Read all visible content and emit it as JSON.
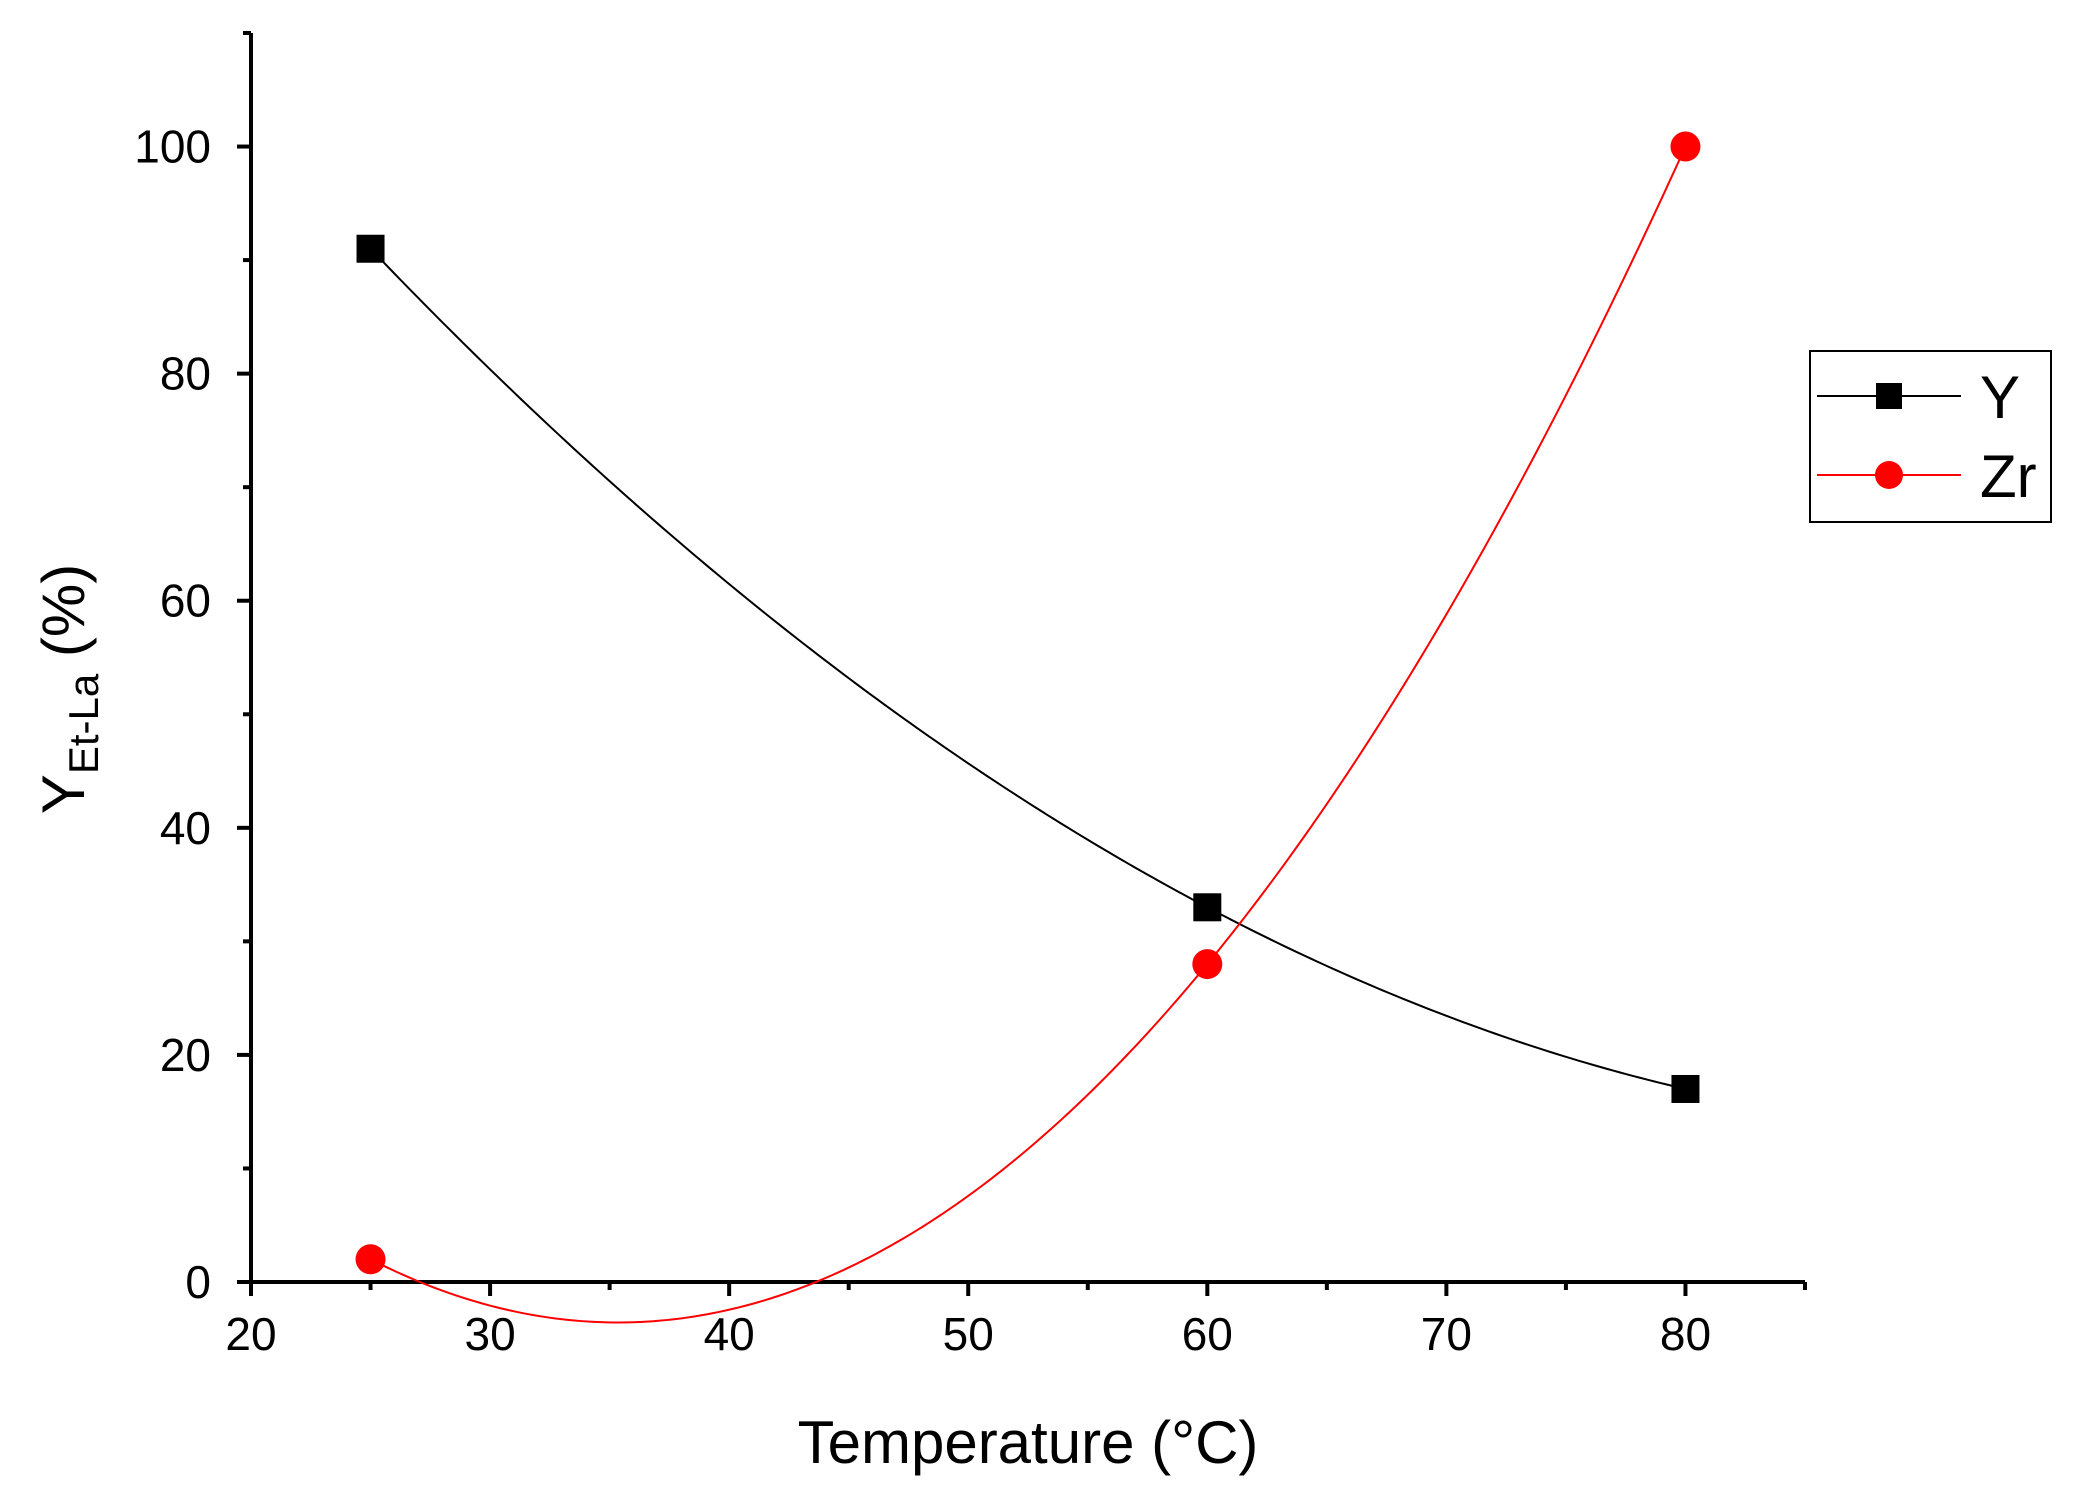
{
  "chart_data": {
    "type": "line",
    "title": "",
    "xlabel": "Temperature (°C)",
    "ylabel_main": "Y",
    "ylabel_sub": "Et-La",
    "ylabel_suffix": " (%)",
    "xlim": [
      20,
      85
    ],
    "ylim": [
      0,
      110
    ],
    "x_major_ticks": [
      20,
      30,
      40,
      50,
      60,
      70,
      80
    ],
    "x_minor_ticks": [
      25,
      35,
      45,
      55,
      65,
      75,
      85
    ],
    "y_major_ticks": [
      0,
      20,
      40,
      60,
      80,
      100
    ],
    "y_minor_ticks": [
      10,
      30,
      50,
      70,
      90,
      110
    ],
    "x_tick_labels": [
      "20",
      "30",
      "40",
      "50",
      "60",
      "70",
      "80"
    ],
    "y_tick_labels": [
      "0",
      "20",
      "40",
      "60",
      "80",
      "100"
    ],
    "x": [
      25,
      60,
      80
    ],
    "series": [
      {
        "name": "Y",
        "values": [
          91,
          33,
          17
        ],
        "color": "#000000",
        "marker": "square"
      },
      {
        "name": "Zr",
        "values": [
          2,
          28,
          100
        ],
        "color": "#ff0000",
        "marker": "circle"
      }
    ],
    "grid": false,
    "legend_position": "right"
  }
}
